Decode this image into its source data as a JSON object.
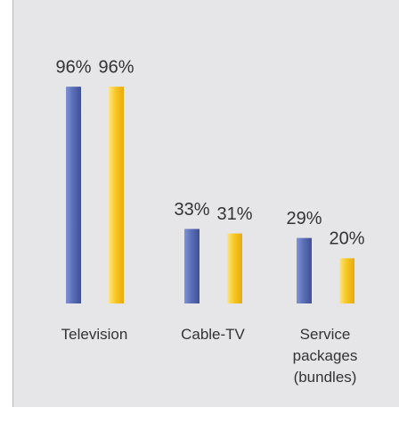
{
  "chart_data": {
    "type": "bar",
    "categories": [
      "Television",
      "Cable-TV",
      "Service packages (bundles)"
    ],
    "series": [
      {
        "color": "#5b6fb8",
        "values": [
          96,
          33,
          29
        ],
        "value_labels": [
          "96%",
          "33%",
          "29%"
        ]
      },
      {
        "color": "#f7c823",
        "values": [
          96,
          31,
          20
        ],
        "value_labels": [
          "96%",
          "31%",
          "20%"
        ]
      }
    ],
    "ylim": [
      0,
      100
    ]
  }
}
